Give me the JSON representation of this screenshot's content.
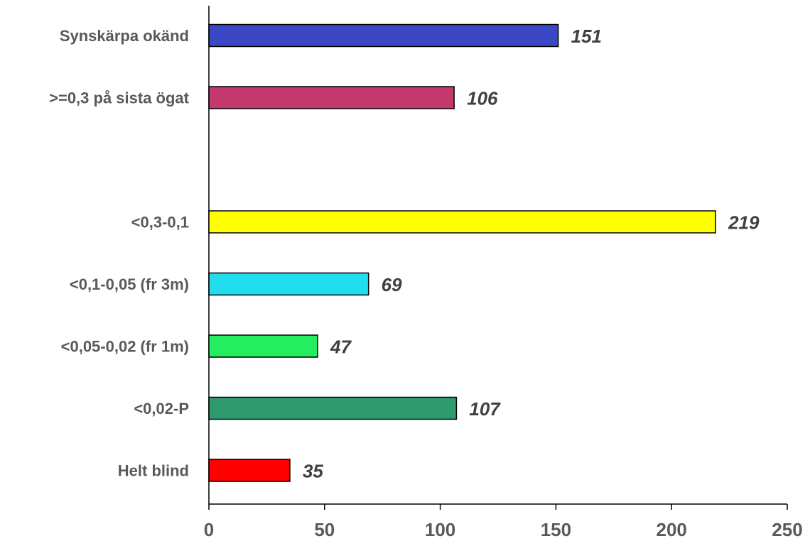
{
  "chart_data": {
    "type": "bar",
    "orientation": "horizontal",
    "categories": [
      "Synskärpa okänd",
      ">=0,3 på sista ögat",
      "",
      "<0,3-0,1",
      "<0,1-0,05 (fr 3m)",
      "<0,05-0,02 (fr 1m)",
      "<0,02-P",
      "Helt blind"
    ],
    "values": [
      151,
      106,
      null,
      219,
      69,
      47,
      107,
      35
    ],
    "colors": [
      "#3A48C4",
      "#C4386E",
      null,
      "#FFFF00",
      "#22DDEE",
      "#22EE5F",
      "#2E9A6E",
      "#FF0000"
    ],
    "xlim": [
      0,
      250
    ],
    "xticks": [
      0,
      50,
      100,
      150,
      200,
      250
    ],
    "grid": false,
    "title": "",
    "xlabel": "",
    "ylabel": ""
  }
}
